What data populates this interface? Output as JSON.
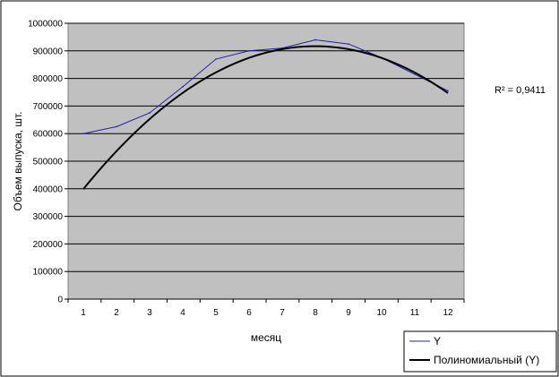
{
  "chart_data": {
    "type": "line",
    "x": [
      1,
      2,
      3,
      4,
      5,
      6,
      7,
      8,
      9,
      10,
      11,
      12
    ],
    "series": [
      {
        "name": "Y",
        "color": "#1f1fb4",
        "values": [
          600000,
          625000,
          675000,
          770000,
          870000,
          900000,
          910000,
          940000,
          925000,
          875000,
          815000,
          755000
        ]
      },
      {
        "name": "Полиномиальный (Y)",
        "color": "#000000",
        "polynomial": {
          "a": -10587,
          "b": 169300,
          "c": 240000
        }
      }
    ],
    "xlabel": "месяц",
    "ylabel": "Объем выпуска, шт.",
    "ylim": [
      0,
      1000000
    ],
    "yticks": [
      0,
      100000,
      200000,
      300000,
      400000,
      500000,
      600000,
      700000,
      800000,
      900000,
      1000000
    ],
    "xticks": [
      1,
      2,
      3,
      4,
      5,
      6,
      7,
      8,
      9,
      10,
      11,
      12
    ],
    "grid": true,
    "plot_background": "#c0c0c0",
    "legend_position": "bottom-right",
    "annotation": {
      "text": "R² = 0,9411"
    }
  }
}
